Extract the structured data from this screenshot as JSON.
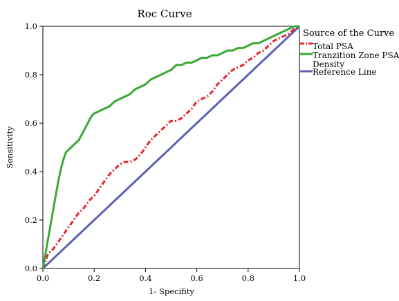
{
  "chart_data": {
    "type": "line",
    "title": "Roc Curve",
    "xlabel": "1- Specifity",
    "ylabel": "Sensitivity",
    "xlim": [
      0,
      1
    ],
    "ylim": [
      0,
      1
    ],
    "xticks": [
      "0.0",
      "0.2",
      "0.4",
      "0.6",
      "0.8",
      "1.0"
    ],
    "yticks": [
      "0.0",
      "0.2",
      "0.4",
      "0.6",
      "0.8",
      "1.0"
    ],
    "grid": false,
    "legend": {
      "title": "Source of the Curve",
      "placement": "right",
      "entries": [
        "Total PSA",
        "Tranzition Zone PSA Density",
        "Reference Line"
      ]
    },
    "series": [
      {
        "name": "Total PSA",
        "color": "#e8262b",
        "style": "dash-dot",
        "x": [
          0.0,
          0.01,
          0.02,
          0.04,
          0.06,
          0.08,
          0.1,
          0.12,
          0.14,
          0.16,
          0.18,
          0.2,
          0.22,
          0.24,
          0.26,
          0.28,
          0.3,
          0.32,
          0.34,
          0.36,
          0.38,
          0.4,
          0.42,
          0.44,
          0.46,
          0.48,
          0.5,
          0.52,
          0.54,
          0.56,
          0.58,
          0.6,
          0.62,
          0.64,
          0.66,
          0.68,
          0.7,
          0.72,
          0.74,
          0.76,
          0.78,
          0.8,
          0.82,
          0.84,
          0.86,
          0.88,
          0.9,
          0.92,
          0.94,
          0.96,
          0.98,
          1.0
        ],
        "y": [
          0.0,
          0.03,
          0.06,
          0.08,
          0.11,
          0.14,
          0.17,
          0.2,
          0.23,
          0.25,
          0.28,
          0.3,
          0.33,
          0.36,
          0.39,
          0.41,
          0.43,
          0.44,
          0.44,
          0.45,
          0.47,
          0.5,
          0.53,
          0.55,
          0.57,
          0.59,
          0.61,
          0.61,
          0.62,
          0.64,
          0.66,
          0.69,
          0.7,
          0.71,
          0.73,
          0.76,
          0.78,
          0.8,
          0.82,
          0.83,
          0.84,
          0.86,
          0.87,
          0.89,
          0.9,
          0.92,
          0.94,
          0.95,
          0.96,
          0.97,
          0.99,
          1.0
        ]
      },
      {
        "name": "Tranzition Zone PSA Density",
        "color": "#3aaa35",
        "style": "solid",
        "x": [
          0.0,
          0.01,
          0.02,
          0.03,
          0.04,
          0.05,
          0.06,
          0.07,
          0.08,
          0.09,
          0.1,
          0.11,
          0.12,
          0.13,
          0.14,
          0.15,
          0.16,
          0.17,
          0.18,
          0.19,
          0.2,
          0.22,
          0.24,
          0.26,
          0.28,
          0.3,
          0.32,
          0.34,
          0.36,
          0.38,
          0.4,
          0.42,
          0.44,
          0.46,
          0.48,
          0.5,
          0.52,
          0.54,
          0.56,
          0.58,
          0.6,
          0.62,
          0.64,
          0.66,
          0.68,
          0.7,
          0.72,
          0.74,
          0.76,
          0.78,
          0.8,
          0.82,
          0.84,
          0.86,
          0.88,
          0.9,
          0.92,
          0.94,
          0.96,
          0.98,
          1.0
        ],
        "y": [
          0.0,
          0.06,
          0.12,
          0.18,
          0.24,
          0.3,
          0.36,
          0.41,
          0.45,
          0.48,
          0.49,
          0.5,
          0.51,
          0.52,
          0.53,
          0.55,
          0.57,
          0.59,
          0.61,
          0.63,
          0.64,
          0.65,
          0.66,
          0.67,
          0.69,
          0.7,
          0.71,
          0.72,
          0.74,
          0.75,
          0.76,
          0.78,
          0.79,
          0.8,
          0.81,
          0.82,
          0.84,
          0.84,
          0.85,
          0.85,
          0.86,
          0.87,
          0.87,
          0.88,
          0.88,
          0.89,
          0.9,
          0.9,
          0.91,
          0.91,
          0.92,
          0.93,
          0.93,
          0.94,
          0.95,
          0.96,
          0.97,
          0.98,
          0.99,
          1.0,
          1.0
        ]
      },
      {
        "name": "Reference Line",
        "color": "#5b5fb6",
        "style": "solid",
        "x": [
          0.0,
          1.0
        ],
        "y": [
          0.0,
          1.0
        ]
      }
    ]
  }
}
